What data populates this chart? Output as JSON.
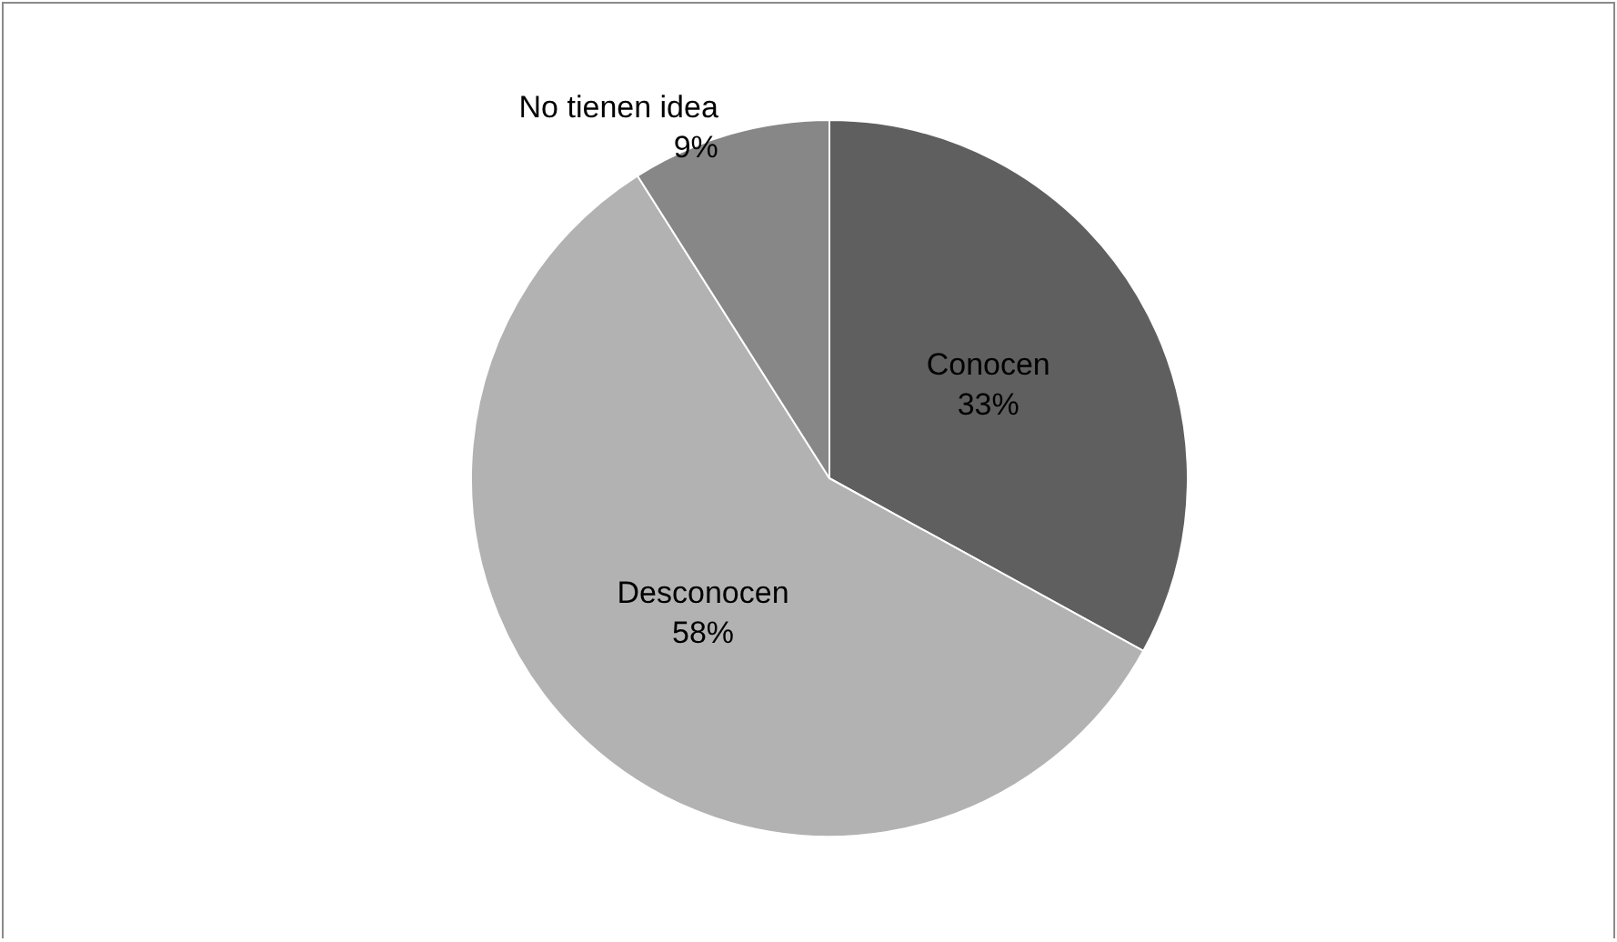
{
  "chart_data": {
    "type": "pie",
    "categories": [
      "Conocen",
      "Desconocen",
      "No tienen idea"
    ],
    "values": [
      33,
      58,
      9
    ],
    "colors": [
      "#5f5f5f",
      "#b2b2b2",
      "#878787"
    ],
    "value_labels": [
      "33%",
      "58%",
      "9%"
    ],
    "legend": false
  }
}
